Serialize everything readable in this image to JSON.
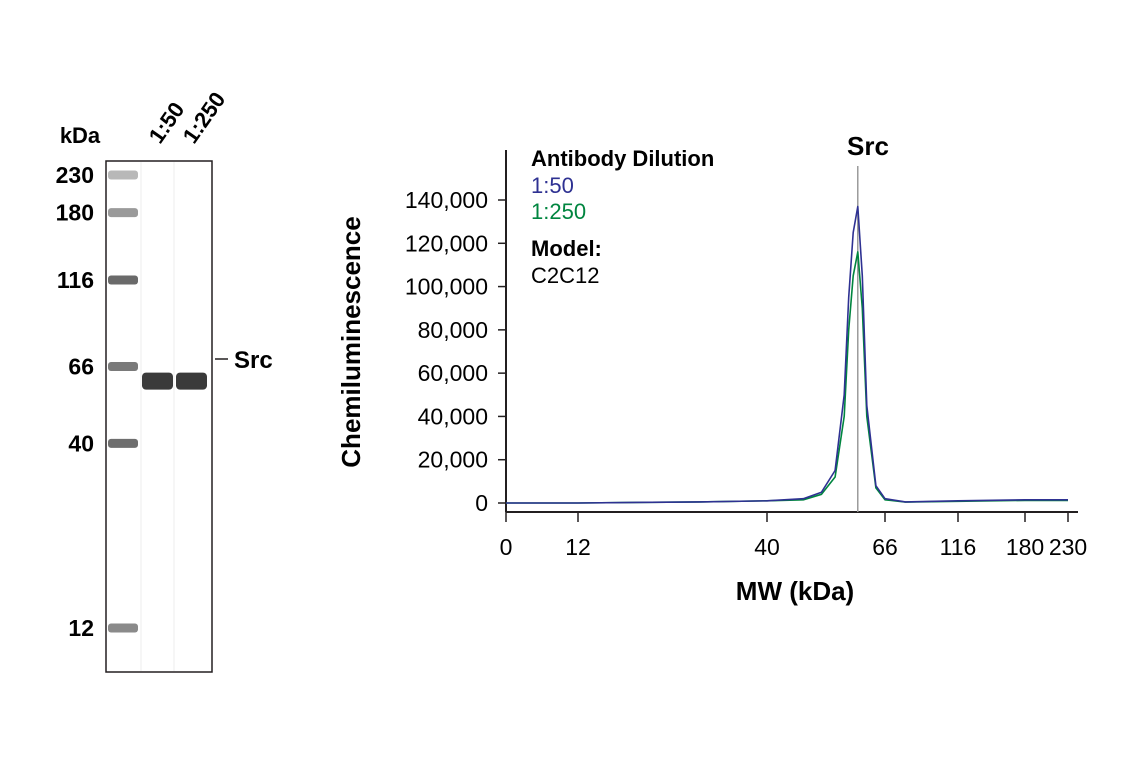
{
  "gel": {
    "unit_label": "kDa",
    "lanes": [
      "1:50",
      "1:250"
    ],
    "ladder": [
      {
        "label": "230",
        "kda": 230
      },
      {
        "label": "180",
        "kda": 180
      },
      {
        "label": "116",
        "kda": 116
      },
      {
        "label": "66",
        "kda": 66
      },
      {
        "label": "40",
        "kda": 40
      },
      {
        "label": "12",
        "kda": 12
      }
    ],
    "band_label": "Src",
    "band_kda": 60
  },
  "chart_data": {
    "type": "line",
    "title": "Src",
    "xlabel": "MW (kDa)",
    "ylabel": "Chemiluminescence",
    "x_tick_labels": [
      "0",
      "12",
      "40",
      "66",
      "116",
      "180",
      "230"
    ],
    "y_tick_labels": [
      "0",
      "20,000",
      "40,000",
      "60,000",
      "80,000",
      "100,000",
      "120,000",
      "140,000"
    ],
    "ylim": [
      0,
      140000
    ],
    "marker_kda": 60,
    "legend": {
      "title": "Antibody Dilution",
      "model_label": "Model:",
      "model_value": "C2C12"
    },
    "colors": {
      "1:50": "#2e3192",
      "1:250": "#00853f"
    },
    "series": [
      {
        "name": "1:50",
        "x": [
          0,
          12,
          30,
          40,
          48,
          52,
          55,
          57,
          58,
          59,
          60,
          61,
          62,
          64,
          66,
          80,
          116,
          180,
          230
        ],
        "y": [
          0,
          0,
          500,
          1000,
          2000,
          5000,
          15000,
          50000,
          95000,
          125000,
          137000,
          105000,
          45000,
          8000,
          2000,
          500,
          1000,
          1500,
          1500
        ]
      },
      {
        "name": "1:250",
        "x": [
          0,
          12,
          30,
          40,
          48,
          52,
          55,
          57,
          58,
          59,
          60,
          61,
          62,
          64,
          66,
          80,
          116,
          180,
          230
        ],
        "y": [
          0,
          0,
          500,
          1000,
          1500,
          4000,
          12000,
          40000,
          80000,
          105000,
          116000,
          90000,
          40000,
          7000,
          1500,
          400,
          800,
          1200,
          1200
        ]
      }
    ]
  }
}
